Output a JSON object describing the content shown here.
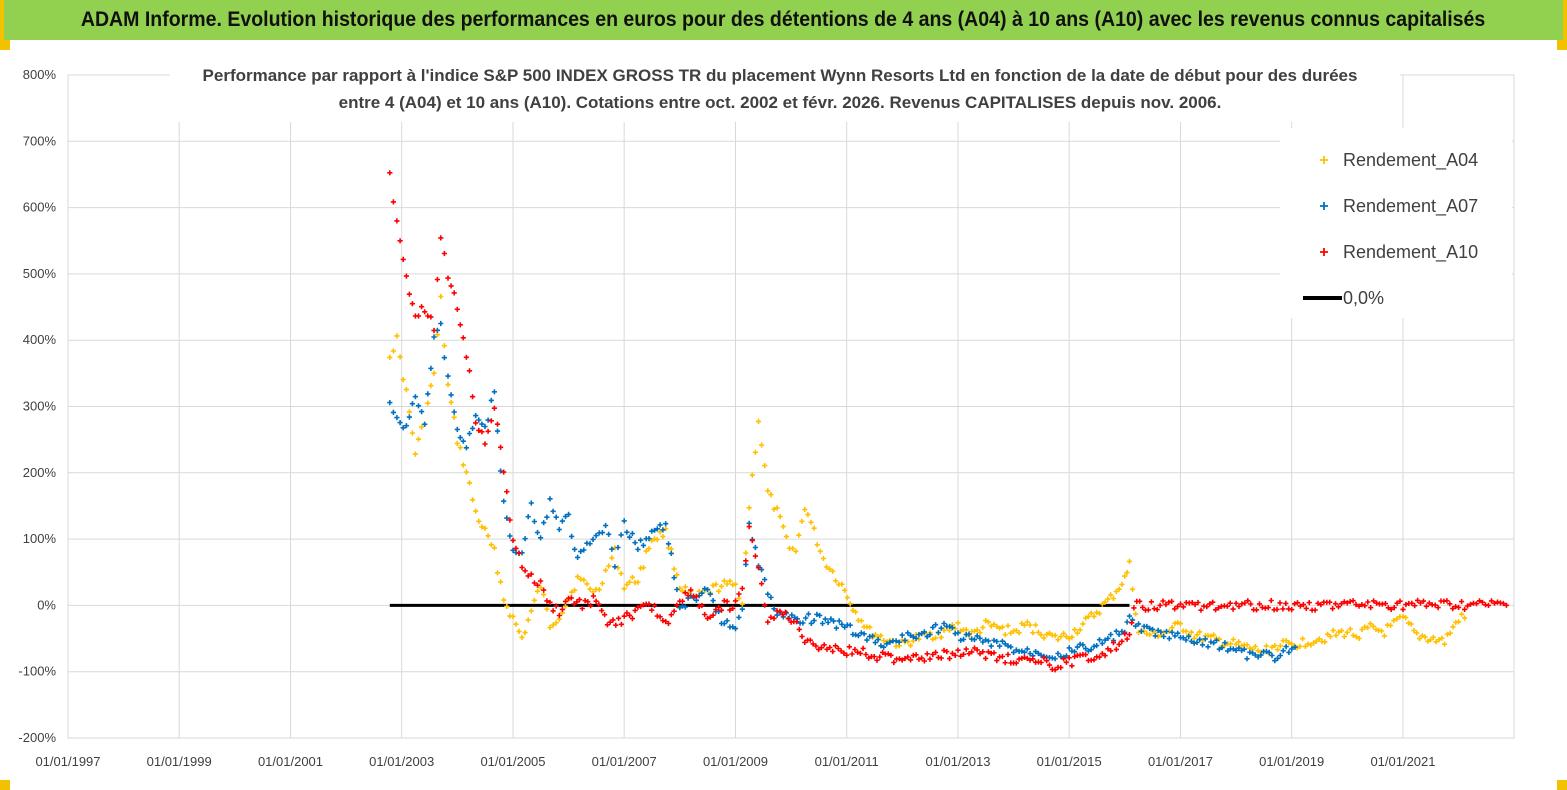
{
  "banner": {
    "title": "ADAM Informe. Evolution historique des performances en euros pour des détentions de 4 ans (A04) à 10 ans (A10) avec les revenus connus capitalisés"
  },
  "colors": {
    "banner_bg": "#92d050",
    "banner_border": "#f2c200",
    "A04": "#ffc000",
    "A07": "#0070c0",
    "A10": "#ff0000",
    "zero": "#000000",
    "grid": "#d9d9d9"
  },
  "chart_data": {
    "type": "scatter",
    "title_line1": "Performance par rapport à l'indice S&P 500 INDEX GROSS TR  du placement Wynn Resorts Ltd en fonction de la date de début pour des durées",
    "title_line2": "entre 4 (A04) et 10 ans (A10). Cotations entre oct. 2002 et févr. 2026. Revenus CAPITALISES depuis nov. 2006.",
    "x_tick_labels": [
      "01/01/1997",
      "01/01/1999",
      "01/01/2001",
      "01/01/2003",
      "01/01/2005",
      "01/01/2007",
      "01/01/2009",
      "01/01/2011",
      "01/01/2013",
      "01/01/2015",
      "01/01/2017",
      "01/01/2019",
      "01/01/2021"
    ],
    "xlim": [
      "1997-01-01",
      "2022-12-31"
    ],
    "y_tick_labels": [
      "800%",
      "700%",
      "600%",
      "500%",
      "400%",
      "300%",
      "200%",
      "100%",
      "0%",
      "-100%",
      "-200%"
    ],
    "ylim": [
      -200,
      800
    ],
    "grid": true,
    "legend_position": "top-right",
    "legend": [
      "Rendement_A04",
      "Rendement_A07",
      "Rendement_A10",
      "0,0%"
    ],
    "zero_line": {
      "name": "0,0%",
      "x": [
        "2002-10-15",
        "2016-02-01"
      ],
      "y": [
        0,
        0
      ]
    },
    "series": [
      {
        "name": "Rendement_A04",
        "x": [
          "2002-10-15",
          "2002-12-01",
          "2003-02-01",
          "2003-04-01",
          "2003-06-01",
          "2003-08-01",
          "2003-09-15",
          "2003-11-01",
          "2004-01-01",
          "2004-03-01",
          "2004-05-01",
          "2004-07-01",
          "2004-09-01",
          "2004-11-01",
          "2005-01-01",
          "2005-03-01",
          "2005-05-01",
          "2005-07-01",
          "2005-09-01",
          "2005-11-01",
          "2006-01-01",
          "2006-03-01",
          "2006-05-01",
          "2006-07-01",
          "2006-09-01",
          "2006-11-01",
          "2007-01-01",
          "2007-04-01",
          "2007-07-01",
          "2007-10-01",
          "2008-01-01",
          "2008-04-01",
          "2008-07-01",
          "2008-10-01",
          "2009-01-01",
          "2009-02-15",
          "2009-04-01",
          "2009-06-01",
          "2009-08-01",
          "2009-10-01",
          "2009-12-01",
          "2010-02-01",
          "2010-04-01",
          "2010-06-01",
          "2010-08-01",
          "2010-10-01",
          "2010-12-01",
          "2011-03-01",
          "2011-06-01",
          "2011-09-01",
          "2012-01-01",
          "2012-04-01",
          "2012-07-01",
          "2012-10-01",
          "2013-01-01",
          "2013-04-01",
          "2013-07-01",
          "2013-10-01",
          "2014-01-01",
          "2014-04-01",
          "2014-07-01",
          "2014-10-01",
          "2015-01-01",
          "2015-04-01",
          "2015-07-01",
          "2015-10-01",
          "2016-01-01",
          "2016-02-01",
          "2016-04-01",
          "2016-07-01",
          "2016-10-01",
          "2017-01-01",
          "2017-04-01",
          "2017-07-01",
          "2017-10-01",
          "2018-01-01",
          "2018-04-01",
          "2018-07-01",
          "2018-10-01",
          "2019-01-01",
          "2019-04-01",
          "2019-07-01",
          "2019-10-01",
          "2020-01-01",
          "2020-03-01",
          "2020-06-01",
          "2020-09-01",
          "2021-01-01",
          "2021-04-01",
          "2021-07-01",
          "2021-10-01",
          "2022-01-01",
          "2022-03-01"
        ],
        "y": [
          380,
          400,
          320,
          230,
          280,
          350,
          460,
          330,
          250,
          200,
          140,
          110,
          80,
          10,
          -20,
          -50,
          -10,
          30,
          -30,
          -15,
          10,
          40,
          30,
          20,
          50,
          80,
          30,
          40,
          100,
          110,
          30,
          10,
          20,
          30,
          30,
          5,
          150,
          280,
          170,
          140,
          100,
          80,
          150,
          110,
          70,
          50,
          30,
          -10,
          -40,
          -50,
          -60,
          -50,
          -45,
          -40,
          -30,
          -45,
          -30,
          -35,
          -40,
          -30,
          -40,
          -50,
          -45,
          -30,
          -10,
          10,
          40,
          60,
          -40,
          -45,
          -40,
          -30,
          -45,
          -50,
          -55,
          -60,
          -65,
          -70,
          -60,
          -60,
          -55,
          -50,
          -45,
          -40,
          -45,
          -35,
          -40,
          -20,
          -45,
          -50,
          -55,
          -20,
          -20
        ]
      },
      {
        "name": "Rendement_A07",
        "x": [
          "2002-10-15",
          "2002-12-01",
          "2003-02-01",
          "2003-04-01",
          "2003-06-01",
          "2003-08-01",
          "2003-09-15",
          "2003-11-01",
          "2004-01-01",
          "2004-03-01",
          "2004-05-01",
          "2004-07-01",
          "2004-09-01",
          "2004-11-01",
          "2005-01-01",
          "2005-03-01",
          "2005-05-01",
          "2005-07-01",
          "2005-09-01",
          "2005-11-01",
          "2006-01-01",
          "2006-03-01",
          "2006-05-01",
          "2006-07-01",
          "2006-09-01",
          "2006-11-01",
          "2007-01-01",
          "2007-04-01",
          "2007-07-01",
          "2007-10-01",
          "2008-01-01",
          "2008-04-01",
          "2008-07-01",
          "2008-10-01",
          "2009-01-01",
          "2009-02-15",
          "2009-04-01",
          "2009-06-01",
          "2009-08-01",
          "2009-10-01",
          "2009-12-01",
          "2010-03-01",
          "2010-06-01",
          "2010-09-01",
          "2010-12-01",
          "2011-03-01",
          "2011-06-01",
          "2011-09-01",
          "2012-01-01",
          "2012-04-01",
          "2012-07-01",
          "2012-10-01",
          "2013-01-01",
          "2013-04-01",
          "2013-07-01",
          "2013-10-01",
          "2014-01-01",
          "2014-04-01",
          "2014-07-01",
          "2014-10-01",
          "2015-01-01",
          "2015-04-01",
          "2015-07-01",
          "2015-10-01",
          "2016-01-01",
          "2016-02-01",
          "2016-04-01",
          "2016-07-01",
          "2016-10-01",
          "2017-01-01",
          "2017-04-01",
          "2017-07-01",
          "2017-10-01",
          "2018-01-01",
          "2018-04-01",
          "2018-07-01",
          "2018-10-01",
          "2019-01-01",
          "2019-02-15"
        ],
        "y": [
          300,
          280,
          270,
          320,
          280,
          400,
          420,
          340,
          270,
          240,
          280,
          270,
          320,
          150,
          90,
          80,
          150,
          100,
          160,
          120,
          130,
          70,
          90,
          100,
          120,
          60,
          120,
          90,
          110,
          120,
          0,
          10,
          20,
          -20,
          -40,
          0,
          130,
          60,
          20,
          -10,
          -15,
          -20,
          -20,
          -25,
          -30,
          -40,
          -50,
          -60,
          -50,
          -45,
          -40,
          -30,
          -45,
          -50,
          -55,
          -60,
          -65,
          -70,
          -70,
          -75,
          -70,
          -65,
          -60,
          -50,
          -40,
          -20,
          -35,
          -40,
          -45,
          -50,
          -55,
          -55,
          -60,
          -70,
          -75,
          -75,
          -80,
          -60,
          -70
        ]
      },
      {
        "name": "Rendement_A10",
        "x": [
          "2002-10-15",
          "2002-12-01",
          "2003-02-01",
          "2003-04-01",
          "2003-06-01",
          "2003-08-01",
          "2003-09-15",
          "2003-11-01",
          "2004-01-01",
          "2004-03-01",
          "2004-05-01",
          "2004-07-01",
          "2004-09-01",
          "2004-11-01",
          "2005-01-01",
          "2005-03-01",
          "2005-05-01",
          "2005-07-01",
          "2005-09-01",
          "2005-11-01",
          "2006-01-01",
          "2006-04-01",
          "2006-07-01",
          "2006-10-01",
          "2007-01-01",
          "2007-04-01",
          "2007-07-01",
          "2007-10-01",
          "2008-01-01",
          "2008-04-01",
          "2008-07-01",
          "2008-10-01",
          "2009-01-01",
          "2009-02-15",
          "2009-04-01",
          "2009-06-01",
          "2009-08-01",
          "2009-10-01",
          "2010-01-01",
          "2010-04-01",
          "2010-07-01",
          "2010-10-01",
          "2011-01-01",
          "2011-04-01",
          "2011-07-01",
          "2011-10-01",
          "2012-01-01",
          "2012-04-01",
          "2012-07-01",
          "2012-10-01",
          "2013-01-01",
          "2013-04-01",
          "2013-07-01",
          "2013-10-01",
          "2014-01-01",
          "2014-04-01",
          "2014-07-01",
          "2014-10-01",
          "2015-01-01",
          "2015-04-01",
          "2015-07-01",
          "2015-10-01",
          "2016-01-01",
          "2016-02-01",
          "2016-03-01",
          "2017-01-01",
          "2018-01-01",
          "2019-01-01",
          "2020-01-01",
          "2021-01-01",
          "2022-01-01",
          "2022-12-01"
        ],
        "y": [
          650,
          580,
          500,
          430,
          450,
          420,
          550,
          500,
          450,
          380,
          280,
          250,
          300,
          200,
          100,
          60,
          40,
          30,
          0,
          -10,
          10,
          0,
          10,
          -30,
          -20,
          -10,
          0,
          -30,
          10,
          20,
          -20,
          0,
          0,
          20,
          120,
          50,
          -20,
          -10,
          -20,
          -50,
          -60,
          -65,
          -70,
          -70,
          -75,
          -80,
          -80,
          -75,
          -80,
          -75,
          -70,
          -70,
          -75,
          -80,
          -80,
          -85,
          -85,
          -90,
          -85,
          -80,
          -75,
          -65,
          -50,
          -40,
          0,
          0,
          0,
          0,
          0,
          0,
          0,
          0
        ]
      }
    ]
  }
}
